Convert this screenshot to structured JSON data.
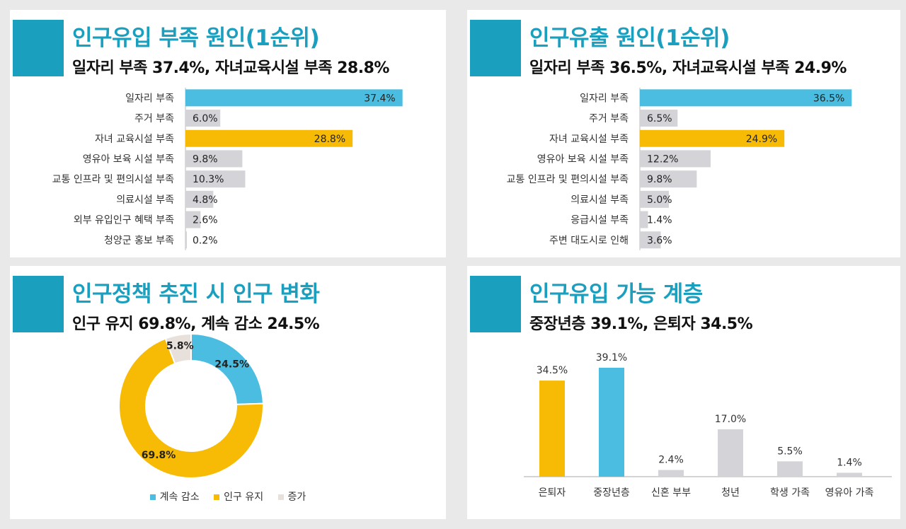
{
  "colors": {
    "accent": "#1b9fbf",
    "blue": "#4abde0",
    "yellow": "#f7bb06",
    "gray": "#d3d3d8",
    "beige": "#e8e0da"
  },
  "panels": {
    "inflow_cause": {
      "title": "인구유입 부족 원인(1순위)",
      "subtitle": "일자리 부족 37.4%, 자녀교육시설 부족 28.8%"
    },
    "outflow_cause": {
      "title": "인구유출 원인(1순위)",
      "subtitle": "일자리 부족 36.5%, 자녀교육시설 부족 24.9%"
    },
    "policy_change": {
      "title": "인구정책 추진 시 인구 변화",
      "subtitle": "인구 유지 69.8%, 계속 감소 24.5%"
    },
    "inflow_groups": {
      "title": "인구유입 가능 계층",
      "subtitle": "중장년층 39.1%, 은퇴자 34.5%"
    }
  },
  "chart_data": [
    {
      "type": "bar",
      "orientation": "horizontal",
      "categories": [
        "일자리 부족",
        "주거 부족",
        "자녀 교육시설 부족",
        "영유아 보육 시설 부족",
        "교통 인프라 및 편의시설 부족",
        "의료시설 부족",
        "외부 유입인구 혜택 부족",
        "청양군 홍보 부족"
      ],
      "values": [
        37.4,
        6.0,
        28.8,
        9.8,
        10.3,
        4.8,
        2.6,
        0.2
      ],
      "labels": [
        "37.4%",
        "6.0%",
        "28.8%",
        "9.8%",
        "10.3%",
        "4.8%",
        "2.6%",
        "0.2%"
      ],
      "bar_colors": [
        "blue",
        "gray",
        "yellow",
        "gray",
        "gray",
        "gray",
        "gray",
        "gray"
      ]
    },
    {
      "type": "bar",
      "orientation": "horizontal",
      "categories": [
        "일자리 부족",
        "주거 부족",
        "자녀 교육시설 부족",
        "영유아 보육 시설 부족",
        "교통 인프라 및 편의시설 부족",
        "의료시설 부족",
        "응급시설 부족",
        "주변 대도시로 인해"
      ],
      "values": [
        36.5,
        6.5,
        24.9,
        12.2,
        9.8,
        5.0,
        1.4,
        3.6
      ],
      "labels": [
        "36.5%",
        "6.5%",
        "24.9%",
        "12.2%",
        "9.8%",
        "5.0%",
        "1.4%",
        "3.6%"
      ],
      "bar_colors": [
        "blue",
        "gray",
        "yellow",
        "gray",
        "gray",
        "gray",
        "gray",
        "gray"
      ]
    },
    {
      "type": "pie",
      "donut": true,
      "slices": [
        {
          "name": "계속 감소",
          "value": 24.5,
          "label": "24.5%",
          "color": "blue"
        },
        {
          "name": "인구 유지",
          "value": 69.8,
          "label": "69.8%",
          "color": "yellow"
        },
        {
          "name": "증가",
          "value": 5.8,
          "label": "5.8%",
          "color": "beige"
        }
      ],
      "legend": [
        "계속 감소",
        "인구 유지",
        "증가"
      ],
      "legend_position": "bottom"
    },
    {
      "type": "bar",
      "orientation": "vertical",
      "categories": [
        "은퇴자",
        "중장년층",
        "신혼 부부",
        "청년",
        "학생 가족",
        "영유아 가족"
      ],
      "values": [
        34.5,
        39.1,
        2.4,
        17.0,
        5.5,
        1.4
      ],
      "labels": [
        "34.5%",
        "39.1%",
        "2.4%",
        "17.0%",
        "5.5%",
        "1.4%"
      ],
      "bar_colors": [
        "yellow",
        "blue",
        "gray",
        "gray",
        "gray",
        "gray"
      ]
    }
  ]
}
